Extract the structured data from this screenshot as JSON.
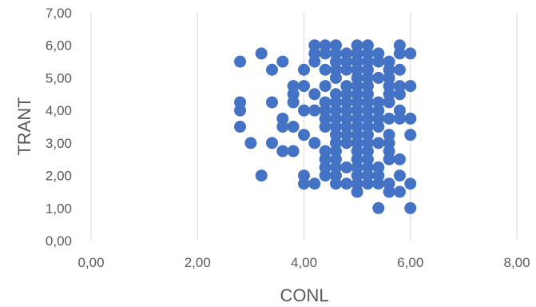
{
  "chart_data": {
    "type": "scatter",
    "title": "",
    "xlabel": "CONL",
    "ylabel": "TRANT",
    "xlim": [
      0,
      8
    ],
    "ylim": [
      0,
      7
    ],
    "x_ticks": [
      "0,00",
      "2,00",
      "4,00",
      "6,00",
      "8,00"
    ],
    "y_ticks": [
      "0,00",
      "1,00",
      "2,00",
      "3,00",
      "4,00",
      "5,00",
      "6,00",
      "7,00"
    ],
    "grid": "vertical-major",
    "legend": "none",
    "point_color": "#4472c4",
    "points": [
      [
        2.8,
        5.5
      ],
      [
        2.8,
        4.25
      ],
      [
        2.8,
        4.0
      ],
      [
        2.8,
        3.5
      ],
      [
        3.0,
        3.0
      ],
      [
        3.2,
        5.75
      ],
      [
        3.2,
        2.0
      ],
      [
        3.4,
        5.25
      ],
      [
        3.4,
        4.25
      ],
      [
        3.4,
        3.0
      ],
      [
        3.6,
        5.5
      ],
      [
        3.6,
        3.75
      ],
      [
        3.6,
        3.5
      ],
      [
        3.6,
        2.75
      ],
      [
        3.8,
        4.75
      ],
      [
        3.8,
        4.5
      ],
      [
        3.8,
        4.25
      ],
      [
        3.8,
        3.5
      ],
      [
        3.8,
        2.75
      ],
      [
        4.0,
        5.25
      ],
      [
        4.0,
        4.75
      ],
      [
        4.0,
        4.0
      ],
      [
        4.0,
        3.25
      ],
      [
        4.0,
        2.0
      ],
      [
        4.0,
        1.75
      ],
      [
        4.2,
        6.0
      ],
      [
        4.2,
        5.75
      ],
      [
        4.2,
        5.5
      ],
      [
        4.2,
        4.5
      ],
      [
        4.2,
        4.0
      ],
      [
        4.2,
        3.0
      ],
      [
        4.2,
        1.75
      ],
      [
        4.4,
        6.0
      ],
      [
        4.4,
        5.75
      ],
      [
        4.4,
        5.25
      ],
      [
        4.4,
        4.75
      ],
      [
        4.4,
        4.25
      ],
      [
        4.4,
        4.0
      ],
      [
        4.4,
        3.75
      ],
      [
        4.4,
        3.5
      ],
      [
        4.4,
        2.75
      ],
      [
        4.4,
        2.5
      ],
      [
        4.4,
        2.25
      ],
      [
        4.4,
        2.0
      ],
      [
        4.6,
        6.0
      ],
      [
        4.6,
        5.75
      ],
      [
        4.6,
        5.5
      ],
      [
        4.6,
        5.25
      ],
      [
        4.6,
        5.0
      ],
      [
        4.6,
        4.5
      ],
      [
        4.6,
        4.25
      ],
      [
        4.6,
        4.0
      ],
      [
        4.6,
        3.75
      ],
      [
        4.6,
        3.5
      ],
      [
        4.6,
        3.25
      ],
      [
        4.6,
        3.0
      ],
      [
        4.6,
        2.75
      ],
      [
        4.6,
        2.5
      ],
      [
        4.6,
        2.25
      ],
      [
        4.6,
        2.0
      ],
      [
        4.6,
        1.75
      ],
      [
        4.8,
        5.75
      ],
      [
        4.8,
        5.5
      ],
      [
        4.8,
        5.25
      ],
      [
        4.8,
        4.75
      ],
      [
        4.8,
        4.5
      ],
      [
        4.8,
        4.25
      ],
      [
        4.8,
        4.0
      ],
      [
        4.8,
        3.75
      ],
      [
        4.8,
        3.5
      ],
      [
        4.8,
        3.25
      ],
      [
        4.8,
        3.0
      ],
      [
        4.8,
        2.25
      ],
      [
        4.8,
        1.75
      ],
      [
        5.0,
        6.0
      ],
      [
        5.0,
        5.75
      ],
      [
        5.0,
        5.5
      ],
      [
        5.0,
        5.25
      ],
      [
        5.0,
        5.0
      ],
      [
        5.0,
        4.75
      ],
      [
        5.0,
        4.5
      ],
      [
        5.0,
        4.25
      ],
      [
        5.0,
        4.0
      ],
      [
        5.0,
        3.75
      ],
      [
        5.0,
        3.5
      ],
      [
        5.0,
        3.25
      ],
      [
        5.0,
        3.0
      ],
      [
        5.0,
        2.75
      ],
      [
        5.0,
        2.5
      ],
      [
        5.0,
        2.25
      ],
      [
        5.0,
        2.0
      ],
      [
        5.0,
        1.75
      ],
      [
        5.0,
        1.5
      ],
      [
        5.2,
        6.0
      ],
      [
        5.2,
        5.75
      ],
      [
        5.2,
        5.5
      ],
      [
        5.2,
        5.25
      ],
      [
        5.2,
        5.0
      ],
      [
        5.2,
        4.75
      ],
      [
        5.2,
        4.5
      ],
      [
        5.2,
        4.25
      ],
      [
        5.2,
        4.0
      ],
      [
        5.2,
        3.75
      ],
      [
        5.2,
        3.5
      ],
      [
        5.2,
        3.25
      ],
      [
        5.2,
        3.0
      ],
      [
        5.2,
        2.75
      ],
      [
        5.2,
        2.5
      ],
      [
        5.2,
        2.25
      ],
      [
        5.2,
        2.0
      ],
      [
        5.2,
        1.75
      ],
      [
        5.4,
        5.75
      ],
      [
        5.4,
        5.5
      ],
      [
        5.4,
        5.0
      ],
      [
        5.4,
        4.25
      ],
      [
        5.4,
        4.0
      ],
      [
        5.4,
        3.75
      ],
      [
        5.4,
        3.5
      ],
      [
        5.4,
        3.0
      ],
      [
        5.4,
        2.25
      ],
      [
        5.4,
        2.0
      ],
      [
        5.4,
        1.75
      ],
      [
        5.4,
        1.0
      ],
      [
        5.6,
        5.5
      ],
      [
        5.6,
        5.25
      ],
      [
        5.6,
        5.0
      ],
      [
        5.6,
        4.75
      ],
      [
        5.6,
        4.5
      ],
      [
        5.6,
        4.25
      ],
      [
        5.6,
        3.75
      ],
      [
        5.6,
        3.25
      ],
      [
        5.6,
        3.0
      ],
      [
        5.6,
        2.75
      ],
      [
        5.6,
        2.5
      ],
      [
        5.6,
        1.75
      ],
      [
        5.6,
        1.5
      ],
      [
        5.8,
        6.0
      ],
      [
        5.8,
        5.75
      ],
      [
        5.8,
        5.25
      ],
      [
        5.8,
        4.75
      ],
      [
        5.8,
        4.5
      ],
      [
        5.8,
        4.0
      ],
      [
        5.8,
        3.75
      ],
      [
        5.8,
        2.5
      ],
      [
        5.8,
        2.0
      ],
      [
        5.8,
        1.5
      ],
      [
        6.0,
        5.75
      ],
      [
        6.0,
        4.75
      ],
      [
        6.0,
        3.75
      ],
      [
        6.0,
        3.25
      ],
      [
        6.0,
        1.75
      ],
      [
        6.0,
        1.0
      ]
    ]
  }
}
